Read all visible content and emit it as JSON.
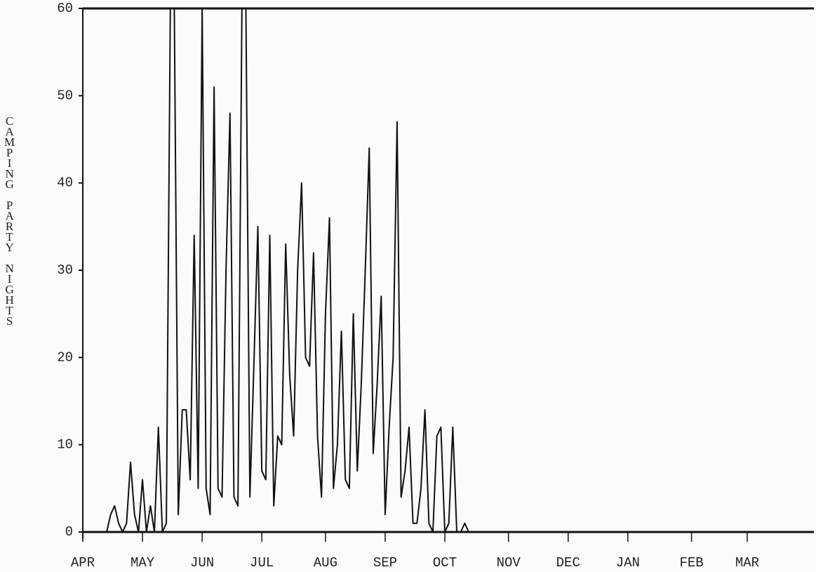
{
  "chart_data": {
    "type": "line",
    "y_label": "CAMPING PARTY NIGHTS",
    "categories": [
      "APR",
      null,
      null,
      null,
      null,
      null,
      null,
      null,
      null,
      null,
      null,
      null,
      null,
      null,
      null,
      "MAY",
      null,
      null,
      null,
      null,
      null,
      null,
      null,
      null,
      null,
      null,
      null,
      null,
      null,
      null,
      "JUN",
      null,
      null,
      null,
      null,
      null,
      null,
      null,
      null,
      null,
      null,
      null,
      null,
      null,
      null,
      "JUL",
      null,
      null,
      null,
      null,
      null,
      null,
      null,
      null,
      null,
      null,
      null,
      null,
      null,
      null,
      null,
      "AUG",
      null,
      null,
      null,
      null,
      null,
      null,
      null,
      null,
      null,
      null,
      null,
      null,
      null,
      null,
      "SEP",
      null,
      null,
      null,
      null,
      null,
      null,
      null,
      null,
      null,
      null,
      null,
      null,
      null,
      null,
      "OCT",
      null,
      null,
      null,
      null,
      null,
      null,
      null,
      null,
      null,
      null,
      null,
      null,
      null,
      null,
      null,
      "NOV",
      null,
      null,
      null,
      null,
      null,
      null,
      null,
      null,
      null,
      null,
      null,
      null,
      null,
      null,
      "DEC",
      null,
      null,
      null,
      null,
      null,
      null,
      null,
      null,
      null,
      null,
      null,
      null,
      null,
      null,
      "JAN",
      null,
      null,
      null,
      null,
      null,
      null,
      null,
      null,
      null,
      null,
      null,
      null,
      null,
      null,
      null,
      "FEB",
      null,
      null,
      null,
      null,
      null,
      null,
      null,
      null,
      null,
      null,
      null,
      null,
      null,
      "MAR",
      null,
      null,
      null,
      null,
      null,
      null,
      null,
      null,
      null,
      null,
      null,
      null,
      null,
      null,
      null
    ],
    "series": [
      {
        "color": "#111111",
        "values": [
          0,
          0,
          0,
          0,
          0,
          0,
          0,
          2,
          3,
          1,
          0,
          1,
          8,
          2,
          0,
          6,
          0,
          3,
          0,
          12,
          0,
          1,
          60,
          60,
          2,
          14,
          14,
          6,
          34,
          5,
          60,
          5,
          2,
          51,
          5,
          4,
          30,
          48,
          4,
          3,
          60,
          60,
          4,
          19,
          35,
          7,
          6,
          34,
          3,
          11,
          10,
          33,
          18,
          11,
          30,
          40,
          20,
          19,
          32,
          11,
          4,
          25,
          36,
          5,
          10,
          23,
          6,
          5,
          25,
          7,
          17,
          30,
          44,
          9,
          17,
          27,
          2,
          12,
          20,
          47,
          4,
          7,
          12,
          1,
          1,
          5,
          14,
          1,
          0,
          11,
          12,
          0,
          1,
          12,
          0,
          0,
          1,
          0,
          0,
          0,
          0,
          0,
          0,
          0,
          0,
          0,
          0,
          0,
          0,
          0,
          0,
          0,
          0,
          0,
          0,
          0,
          0,
          0,
          0,
          0,
          0,
          0,
          0,
          0,
          0,
          0,
          0,
          0,
          0,
          0,
          0,
          0,
          0,
          0,
          0,
          0,
          0,
          0,
          0,
          0,
          0,
          0,
          0,
          0,
          0,
          0,
          0,
          0,
          0,
          0,
          0,
          0,
          0,
          0,
          0,
          0,
          0,
          0,
          0,
          0,
          0,
          0,
          0,
          0,
          0,
          0,
          0,
          0,
          0,
          0,
          0,
          0,
          0,
          0,
          0,
          0,
          0,
          0,
          0,
          0,
          0,
          0,
          0
        ]
      }
    ],
    "ylim": [
      0,
      60
    ],
    "yticks": [
      0,
      10,
      20,
      30,
      40,
      50,
      60
    ]
  }
}
